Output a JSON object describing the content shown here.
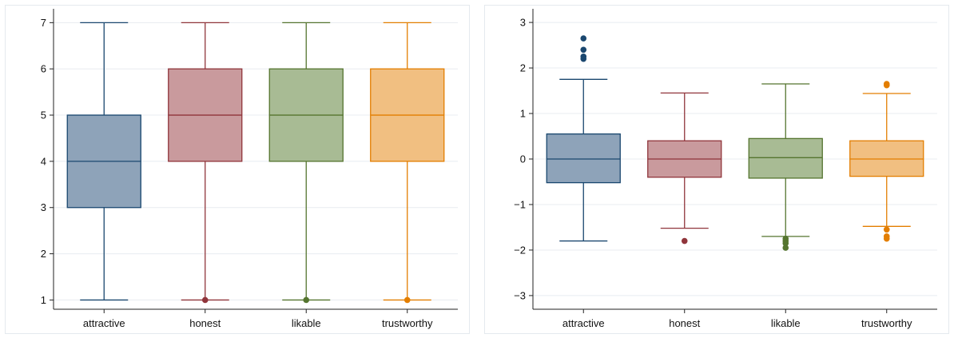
{
  "chart_data": [
    {
      "type": "box",
      "categories": [
        "attractive",
        "honest",
        "likable",
        "trustworthy"
      ],
      "colors": {
        "fill": [
          "#8ea3b9",
          "#c99a9d",
          "#a8bb94",
          "#f1bf81"
        ],
        "stroke": [
          "#1a476f",
          "#90353b",
          "#55752f",
          "#e37e00"
        ]
      },
      "ylim": [
        0.8,
        7.3
      ],
      "yticks": [
        "1",
        "2",
        "3",
        "4",
        "5",
        "6",
        "7"
      ],
      "ytick_values": [
        1,
        2,
        3,
        4,
        5,
        6,
        7
      ],
      "grid": true,
      "boxes": [
        {
          "min": 1,
          "q1": 3,
          "median": 4,
          "q3": 5,
          "max": 7,
          "outliers": []
        },
        {
          "min": 1,
          "q1": 4,
          "median": 5,
          "q3": 6,
          "max": 7,
          "outliers": [
            1
          ]
        },
        {
          "min": 1,
          "q1": 4,
          "median": 5,
          "q3": 6,
          "max": 7,
          "outliers": [
            1
          ]
        },
        {
          "min": 1,
          "q1": 4,
          "median": 5,
          "q3": 6,
          "max": 7,
          "outliers": [
            1
          ]
        }
      ]
    },
    {
      "type": "box",
      "categories": [
        "attractive",
        "honest",
        "likable",
        "trustworthy"
      ],
      "colors": {
        "fill": [
          "#8ea3b9",
          "#c99a9d",
          "#a8bb94",
          "#f1bf81"
        ],
        "stroke": [
          "#1a476f",
          "#90353b",
          "#55752f",
          "#e37e00"
        ]
      },
      "ylim": [
        -3.3,
        3.3
      ],
      "yticks": [
        "3",
        "2",
        "1",
        "0",
        "−1",
        "−2",
        "−3"
      ],
      "ytick_values": [
        3,
        2,
        1,
        0,
        -1,
        -2,
        -3
      ],
      "grid": true,
      "boxes": [
        {
          "min": -1.8,
          "q1": -0.52,
          "median": 0,
          "q3": 0.55,
          "max": 1.75,
          "outliers": [
            2.65,
            2.4,
            2.25,
            2.2
          ]
        },
        {
          "min": -1.52,
          "q1": -0.4,
          "median": 0,
          "q3": 0.4,
          "max": 1.45,
          "outliers": [
            -1.8
          ]
        },
        {
          "min": -1.7,
          "q1": -0.42,
          "median": 0.03,
          "q3": 0.45,
          "max": 1.65,
          "outliers": [
            -1.75,
            -1.8,
            -1.85,
            -1.95
          ]
        },
        {
          "min": -1.48,
          "q1": -0.38,
          "median": 0,
          "q3": 0.4,
          "max": 1.44,
          "outliers": [
            1.65,
            1.62,
            -1.55,
            -1.7,
            -1.75
          ]
        }
      ]
    }
  ]
}
